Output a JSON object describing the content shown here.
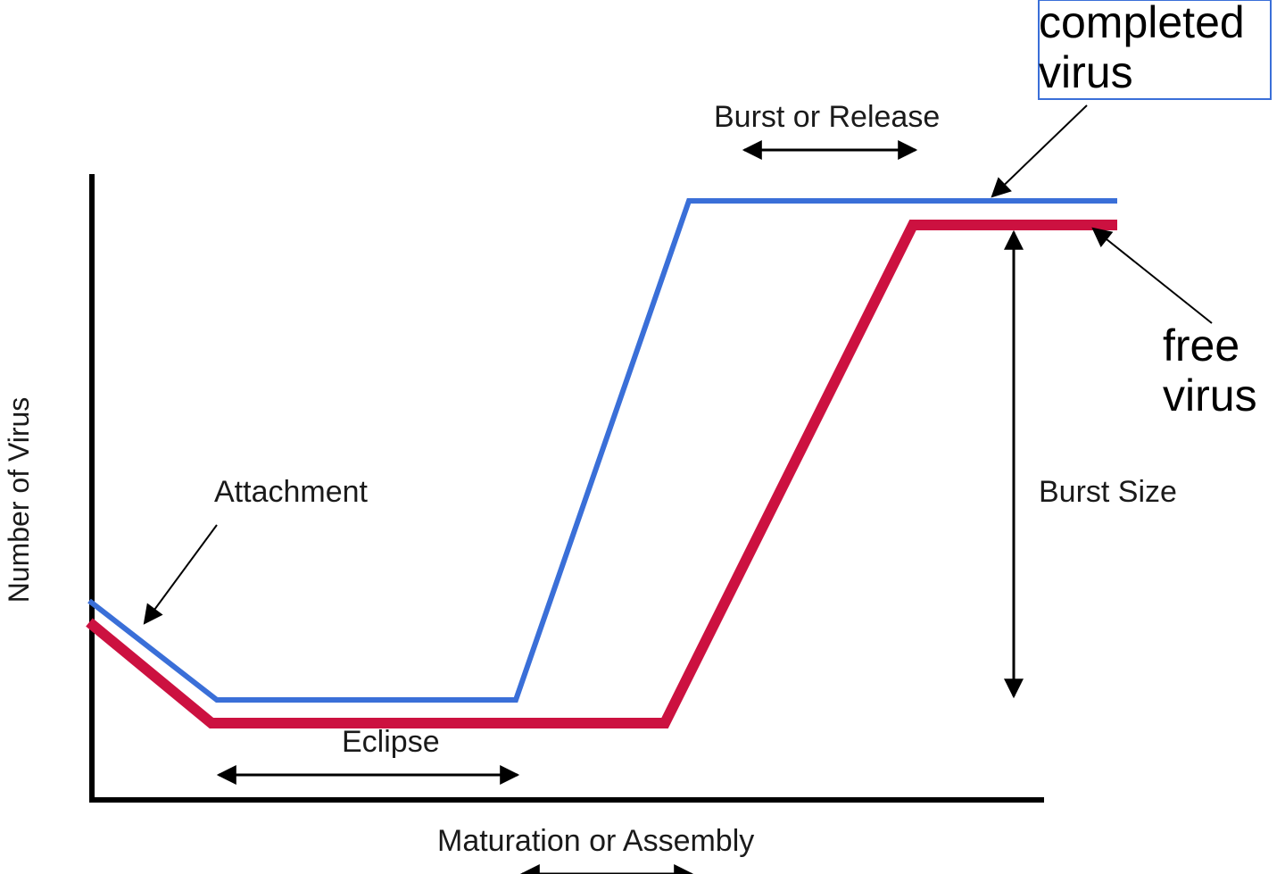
{
  "labels": {
    "completed_virus_line1": "completed",
    "completed_virus_line2": "virus",
    "free_virus_line1": "free",
    "free_virus_line2": "virus",
    "burst_or_release": "Burst or Release",
    "burst_size": "Burst Size",
    "attachment": "Attachment",
    "eclipse": "Eclipse",
    "maturation": "Maturation or Assembly",
    "y_axis": "Number of Virus"
  },
  "colors": {
    "completed_virus": "#3a6fd8",
    "free_virus": "#cc1140",
    "axis": "#000000",
    "callout_border": "#3a6fd8"
  }
}
